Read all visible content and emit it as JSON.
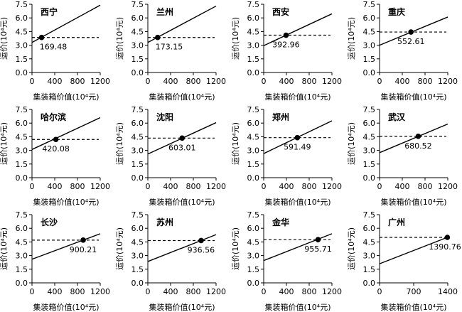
{
  "chart_data": [
    {
      "type": "line",
      "title": "西宁",
      "xlabel": "集装箱价值(10⁴元)",
      "ylabel": "运价(10⁴元)",
      "xlim": [
        0,
        1200
      ],
      "ylim": [
        0,
        7.5
      ],
      "xticks": [
        0,
        400,
        800,
        1200
      ],
      "xtick_labels": [
        "0",
        "400",
        "800",
        "1200"
      ],
      "yticks": [
        0,
        1.5,
        3,
        4.5,
        6,
        7.5
      ],
      "ytick_labels": [
        "0.0",
        "1.5",
        "3.0",
        "4.5",
        "6.0",
        "7.5"
      ],
      "line_x": [
        0,
        1200
      ],
      "line_y": [
        3.3,
        7.4
      ],
      "threshold_y": 3.85,
      "point": {
        "x": 169.48,
        "y": 3.85
      },
      "point_label": "169.48"
    },
    {
      "type": "line",
      "title": "兰州",
      "xlabel": "集装箱价值(10⁴元)",
      "ylabel": "运价(10⁴元)",
      "xlim": [
        0,
        1200
      ],
      "ylim": [
        0,
        7.5
      ],
      "xticks": [
        0,
        400,
        800,
        1200
      ],
      "xtick_labels": [
        "0",
        "400",
        "800",
        "1200"
      ],
      "yticks": [
        0,
        1.5,
        3,
        4.5,
        6,
        7.5
      ],
      "ytick_labels": [
        "0.0",
        "1.5",
        "3.0",
        "4.5",
        "6.0",
        "7.5"
      ],
      "line_x": [
        0,
        1200
      ],
      "line_y": [
        3.3,
        7.3
      ],
      "threshold_y": 3.85,
      "point": {
        "x": 173.15,
        "y": 3.85
      },
      "point_label": "173.15"
    },
    {
      "type": "line",
      "title": "西安",
      "xlabel": "集装箱价值(10⁴元)",
      "ylabel": "运价(10⁴元)",
      "xlim": [
        0,
        1200
      ],
      "ylim": [
        0,
        7.5
      ],
      "xticks": [
        0,
        400,
        800,
        1200
      ],
      "xtick_labels": [
        "0",
        "400",
        "800",
        "1200"
      ],
      "yticks": [
        0,
        1.5,
        3,
        4.5,
        6,
        7.5
      ],
      "ytick_labels": [
        "0.0",
        "1.5",
        "3.0",
        "4.5",
        "6.0",
        "7.5"
      ],
      "line_x": [
        0,
        1200
      ],
      "line_y": [
        2.95,
        6.45
      ],
      "threshold_y": 4.1,
      "point": {
        "x": 392.96,
        "y": 4.1
      },
      "point_label": "392.96"
    },
    {
      "type": "line",
      "title": "重庆",
      "xlabel": "集装箱价值(10⁴元)",
      "ylabel": "运价(10⁴元)",
      "xlim": [
        0,
        1200
      ],
      "ylim": [
        0,
        7.5
      ],
      "xticks": [
        0,
        400,
        800,
        1200
      ],
      "xtick_labels": [
        "0",
        "400",
        "800",
        "1200"
      ],
      "yticks": [
        0,
        1.5,
        3,
        4.5,
        6,
        7.5
      ],
      "ytick_labels": [
        "0.0",
        "1.5",
        "3.0",
        "4.5",
        "6.0",
        "7.5"
      ],
      "line_x": [
        0,
        1200
      ],
      "line_y": [
        3.0,
        6.1
      ],
      "threshold_y": 4.45,
      "point": {
        "x": 552.61,
        "y": 4.45
      },
      "point_label": "552.61"
    },
    {
      "type": "line",
      "title": "哈尔滨",
      "xlabel": "集装箱价值(10⁴元)",
      "ylabel": "运价(10⁴元)",
      "xlim": [
        0,
        1200
      ],
      "ylim": [
        0,
        7.5
      ],
      "xticks": [
        0,
        400,
        800,
        1200
      ],
      "xtick_labels": [
        "0",
        "400",
        "800",
        "1200"
      ],
      "yticks": [
        0,
        1.5,
        3,
        4.5,
        6,
        7.5
      ],
      "ytick_labels": [
        "0.0",
        "1.5",
        "3.0",
        "4.5",
        "6.0",
        "7.5"
      ],
      "line_x": [
        0,
        1200
      ],
      "line_y": [
        3.1,
        6.6
      ],
      "threshold_y": 4.2,
      "point": {
        "x": 420.08,
        "y": 4.2
      },
      "point_label": "420.08"
    },
    {
      "type": "line",
      "title": "沈阳",
      "xlabel": "集装箱价值(10⁴元)",
      "ylabel": "运价(10⁴元)",
      "xlim": [
        0,
        1200
      ],
      "ylim": [
        0,
        7.5
      ],
      "xticks": [
        0,
        400,
        800,
        1200
      ],
      "xtick_labels": [
        "0",
        "400",
        "800",
        "1200"
      ],
      "yticks": [
        0,
        1.5,
        3,
        4.5,
        6,
        7.5
      ],
      "ytick_labels": [
        "0.0",
        "1.5",
        "3.0",
        "4.5",
        "6.0",
        "7.5"
      ],
      "line_x": [
        0,
        1200
      ],
      "line_y": [
        2.6,
        6.05
      ],
      "threshold_y": 4.35,
      "point": {
        "x": 603.01,
        "y": 4.35
      },
      "point_label": "603.01"
    },
    {
      "type": "line",
      "title": "郑州",
      "xlabel": "集装箱价值(10⁴元)",
      "ylabel": "运价(10⁴元)",
      "xlim": [
        0,
        1200
      ],
      "ylim": [
        0,
        7.5
      ],
      "xticks": [
        0,
        400,
        800,
        1200
      ],
      "xtick_labels": [
        "0",
        "400",
        "800",
        "1200"
      ],
      "yticks": [
        0,
        1.5,
        3,
        4.5,
        6,
        7.5
      ],
      "ytick_labels": [
        "0.0",
        "1.5",
        "3.0",
        "4.5",
        "6.0",
        "7.5"
      ],
      "line_x": [
        0,
        1200
      ],
      "line_y": [
        2.65,
        6.25
      ],
      "threshold_y": 4.4,
      "point": {
        "x": 591.49,
        "y": 4.4
      },
      "point_label": "591.49"
    },
    {
      "type": "line",
      "title": "武汉",
      "xlabel": "集装箱价值(10⁴元)",
      "ylabel": "运价(10⁴元)",
      "xlim": [
        0,
        1200
      ],
      "ylim": [
        0,
        7.5
      ],
      "xticks": [
        0,
        400,
        800,
        1200
      ],
      "xtick_labels": [
        "0",
        "400",
        "800",
        "1200"
      ],
      "yticks": [
        0,
        1.5,
        3,
        4.5,
        6,
        7.5
      ],
      "ytick_labels": [
        "0.0",
        "1.5",
        "3.0",
        "4.5",
        "6.0",
        "7.5"
      ],
      "line_x": [
        0,
        1200
      ],
      "line_y": [
        2.75,
        5.9
      ],
      "threshold_y": 4.55,
      "point": {
        "x": 680.52,
        "y": 4.55
      },
      "point_label": "680.52"
    },
    {
      "type": "line",
      "title": "长沙",
      "xlabel": "集装箱价值(10⁴元)",
      "ylabel": "运价(10⁴元)",
      "xlim": [
        0,
        1200
      ],
      "ylim": [
        0,
        7.5
      ],
      "xticks": [
        0,
        400,
        800,
        1200
      ],
      "xtick_labels": [
        "0",
        "400",
        "800",
        "1200"
      ],
      "yticks": [
        0,
        1.5,
        3,
        4.5,
        6,
        7.5
      ],
      "ytick_labels": [
        "0.0",
        "1.5",
        "3.0",
        "4.5",
        "6.0",
        "7.5"
      ],
      "line_x": [
        0,
        1200
      ],
      "line_y": [
        2.6,
        5.4
      ],
      "threshold_y": 4.7,
      "point": {
        "x": 900.21,
        "y": 4.7
      },
      "point_label": "900.21"
    },
    {
      "type": "line",
      "title": "苏州",
      "xlabel": "集装箱价值(10⁴元)",
      "ylabel": "运价(10⁴元)",
      "xlim": [
        0,
        1200
      ],
      "ylim": [
        0,
        7.5
      ],
      "xticks": [
        0,
        400,
        800,
        1200
      ],
      "xtick_labels": [
        "0",
        "400",
        "800",
        "1200"
      ],
      "yticks": [
        0,
        1.5,
        3,
        4.5,
        6,
        7.5
      ],
      "ytick_labels": [
        "0.0",
        "1.5",
        "3.0",
        "4.5",
        "6.0",
        "7.5"
      ],
      "line_x": [
        0,
        1200
      ],
      "line_y": [
        2.35,
        5.3
      ],
      "threshold_y": 4.65,
      "point": {
        "x": 936.56,
        "y": 4.65
      },
      "point_label": "936.56"
    },
    {
      "type": "line",
      "title": "金华",
      "xlabel": "集装箱价值(10⁴元)",
      "ylabel": "运价(10⁴元)",
      "xlim": [
        0,
        1200
      ],
      "ylim": [
        0,
        7.5
      ],
      "xticks": [
        0,
        400,
        800,
        1200
      ],
      "xtick_labels": [
        "0",
        "400",
        "800",
        "1200"
      ],
      "yticks": [
        0,
        1.5,
        3,
        4.5,
        6,
        7.5
      ],
      "ytick_labels": [
        "0.0",
        "1.5",
        "3.0",
        "4.5",
        "6.0",
        "7.5"
      ],
      "line_x": [
        0,
        1200
      ],
      "line_y": [
        2.45,
        5.4
      ],
      "threshold_y": 4.75,
      "point": {
        "x": 955.71,
        "y": 4.75
      },
      "point_label": "955.71"
    },
    {
      "type": "line",
      "title": "广州",
      "xlabel": "集装箱价值(10⁴元)",
      "ylabel": "运价(10⁴元)",
      "xlim": [
        0,
        1400
      ],
      "ylim": [
        0,
        7.5
      ],
      "xticks": [
        0,
        700,
        1400
      ],
      "xtick_labels": [
        "0",
        "700",
        "1400"
      ],
      "yticks": [
        0,
        1.5,
        3,
        4.5,
        6,
        7.5
      ],
      "ytick_labels": [
        "0.0",
        "1.5",
        "3.0",
        "4.5",
        "6.0",
        "7.5"
      ],
      "line_x": [
        0,
        1390.76
      ],
      "line_y": [
        2.1,
        5.0
      ],
      "threshold_y": 5.0,
      "point": {
        "x": 1390.76,
        "y": 5.0
      },
      "point_label": "1390.76"
    }
  ]
}
